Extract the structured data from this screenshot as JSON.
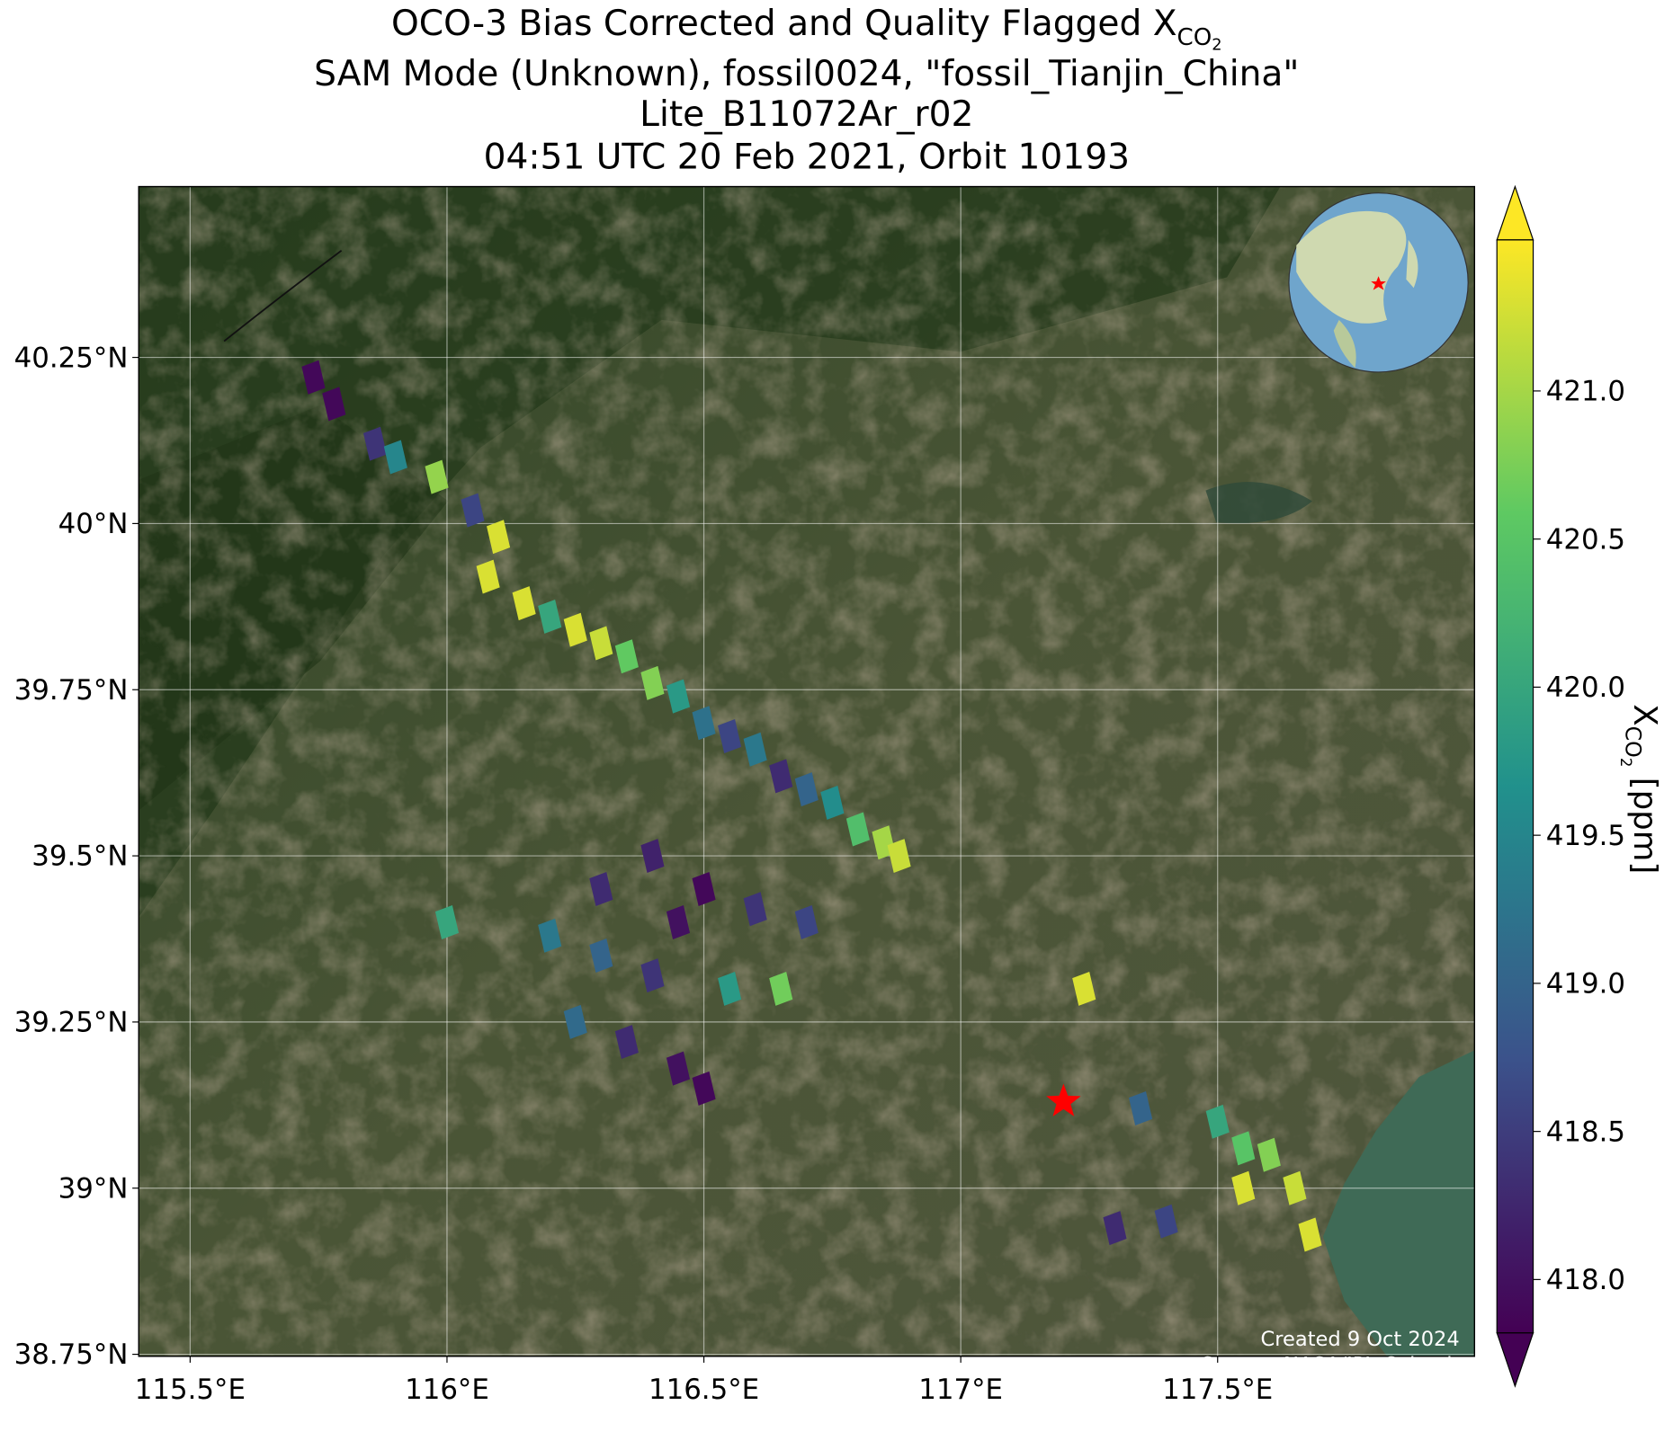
{
  "chart_data": {
    "type": "map",
    "title_lines": [
      {
        "text": "OCO-3 Bias Corrected and Quality Flagged X",
        "sub": "CO",
        "subsub": "2"
      },
      "SAM Mode (Unknown), fossil0024, \"fossil_Tianjin_China\"",
      "Lite_B11072Ar_r02",
      "04:51 UTC 20 Feb 2021, Orbit 10193"
    ],
    "xlim": [
      115.4,
      118.0
    ],
    "ylim": [
      38.747,
      40.507
    ],
    "xticks": [
      {
        "value": 115.5,
        "label": "115.5°E"
      },
      {
        "value": 116,
        "label": "116°E"
      },
      {
        "value": 116.5,
        "label": "116.5°E"
      },
      {
        "value": 117,
        "label": "117°E"
      },
      {
        "value": 117.5,
        "label": "117.5°E"
      }
    ],
    "yticks": [
      {
        "value": 38.75,
        "label": "38.75°N"
      },
      {
        "value": 39,
        "label": "39°N"
      },
      {
        "value": 39.25,
        "label": "39.25°N"
      },
      {
        "value": 39.5,
        "label": "39.5°N"
      },
      {
        "value": 39.75,
        "label": "39.75°N"
      },
      {
        "value": 40,
        "label": "40°N"
      },
      {
        "value": 40.25,
        "label": "40.25°N"
      }
    ],
    "grid": true,
    "colorbar": {
      "label": {
        "text": "X",
        "sub": "CO",
        "subsub": "2",
        "unit": " [ppm]"
      },
      "clim": [
        417.82,
        421.51
      ],
      "colormap": "viridis",
      "ticks": [
        {
          "value": 418,
          "label": "418.0"
        },
        {
          "value": 418.5,
          "label": "418.5"
        },
        {
          "value": 419,
          "label": "419.0"
        },
        {
          "value": 419.5,
          "label": "419.5"
        },
        {
          "value": 420,
          "label": "420.0"
        },
        {
          "value": 420.5,
          "label": "420.5"
        },
        {
          "value": 421,
          "label": "421.0"
        }
      ]
    },
    "target": {
      "lon": 117.2,
      "lat": 39.13,
      "color": "#ff0000"
    },
    "soundings": {
      "lon": [
        115.74,
        115.78,
        115.86,
        115.9,
        115.98,
        116.05,
        116.1,
        116.08,
        116.15,
        116.2,
        116.25,
        116.3,
        116.35,
        116.4,
        116.45,
        116.5,
        116.55,
        116.6,
        116.65,
        116.7,
        116.75,
        116.8,
        116.85,
        116.88,
        116.3,
        116.4,
        116.5,
        116.45,
        116.6,
        116.7,
        116.2,
        116.3,
        116.4,
        116.55,
        116.65,
        116.25,
        116.35,
        116.45,
        116.5,
        116.0,
        117.24,
        117.35,
        117.5,
        117.55,
        117.6,
        117.65,
        117.55,
        117.4,
        117.3,
        117.68
      ],
      "lat": [
        40.22,
        40.18,
        40.12,
        40.1,
        40.07,
        40.02,
        39.98,
        39.92,
        39.88,
        39.86,
        39.84,
        39.82,
        39.8,
        39.76,
        39.74,
        39.7,
        39.68,
        39.66,
        39.62,
        39.6,
        39.58,
        39.54,
        39.52,
        39.5,
        39.45,
        39.5,
        39.45,
        39.4,
        39.42,
        39.4,
        39.38,
        39.35,
        39.32,
        39.3,
        39.3,
        39.25,
        39.22,
        39.18,
        39.15,
        39.4,
        39.3,
        39.12,
        39.1,
        39.06,
        39.05,
        39.0,
        39.0,
        38.95,
        38.94,
        38.93
      ],
      "xco2": [
        417.9,
        417.9,
        418.4,
        419.5,
        420.9,
        418.6,
        421.3,
        421.3,
        421.3,
        420.0,
        421.3,
        421.2,
        420.6,
        420.8,
        419.8,
        419.2,
        418.6,
        419.3,
        418.3,
        419.0,
        419.6,
        420.4,
        421.0,
        421.2,
        418.3,
        418.2,
        417.9,
        418.0,
        418.4,
        418.6,
        419.3,
        419.0,
        418.4,
        419.8,
        420.7,
        419.1,
        418.3,
        418.0,
        417.9,
        420.0,
        421.3,
        419.0,
        420.0,
        420.5,
        420.8,
        421.2,
        421.3,
        418.6,
        418.3,
        421.3
      ]
    },
    "credits": [
      "Created 9 Oct 2024",
      "Source: NASA/JPL-Caltech"
    ]
  }
}
